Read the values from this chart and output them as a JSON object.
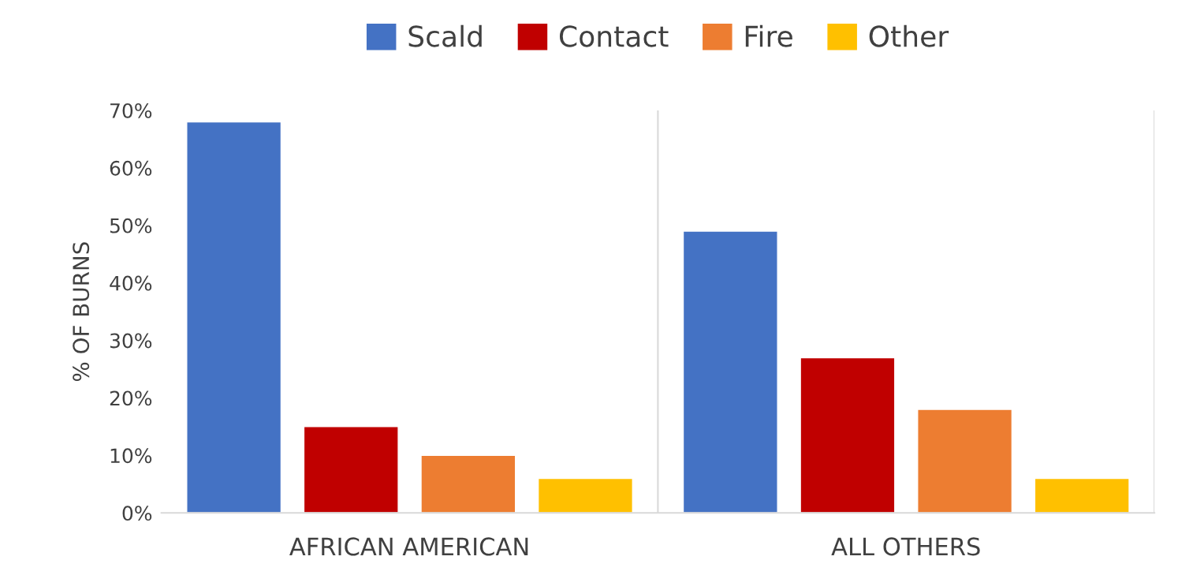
{
  "chart_data": {
    "type": "bar",
    "ylabel": "% OF BURNS",
    "categories": [
      "AFRICAN AMERICAN",
      "ALL OTHERS"
    ],
    "series": [
      {
        "name": "Scald",
        "color": "#4472c4",
        "values": [
          68,
          49
        ]
      },
      {
        "name": "Contact",
        "color": "#c00000",
        "values": [
          15,
          27
        ]
      },
      {
        "name": "Fire",
        "color": "#ed7d31",
        "values": [
          10,
          18
        ]
      },
      {
        "name": "Other",
        "color": "#ffc000",
        "values": [
          6,
          6
        ]
      }
    ],
    "ylim": [
      0,
      70
    ],
    "yticks": [
      {
        "value": 0,
        "label": "0%"
      },
      {
        "value": 10,
        "label": "10%"
      },
      {
        "value": 20,
        "label": "20%"
      },
      {
        "value": 30,
        "label": "30%"
      },
      {
        "value": 40,
        "label": "40%"
      },
      {
        "value": 50,
        "label": "50%"
      },
      {
        "value": 60,
        "label": "60%"
      },
      {
        "value": 70,
        "label": "70%"
      }
    ],
    "grid": "x",
    "legend": "top"
  }
}
